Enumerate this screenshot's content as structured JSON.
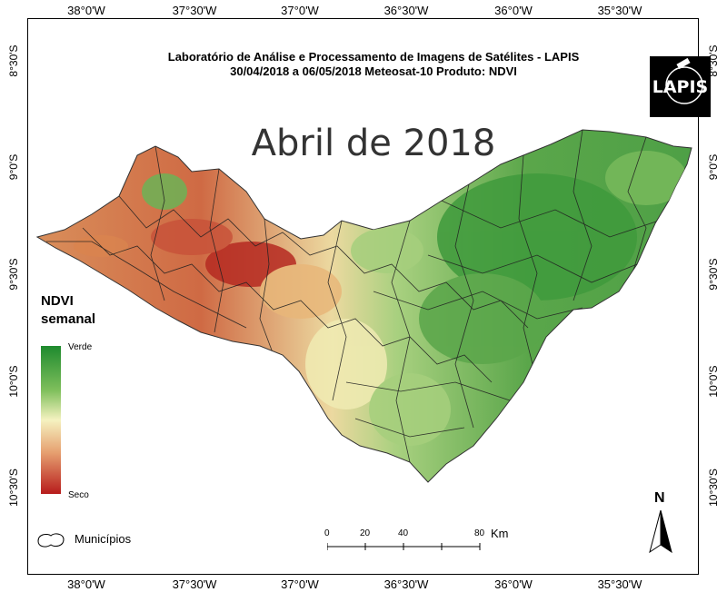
{
  "header": {
    "line1": "Laboratório de Análise e Processamento de Imagens de Satélites - LAPIS",
    "line2": "30/04/2018  a 06/05/2018          Meteosat-10        Produto: NDVI"
  },
  "map_title": "Abril de 2018",
  "logo_text": "LAPIS",
  "axes": {
    "lon_ticks": [
      "38°0'W",
      "37°30'W",
      "37°0'W",
      "36°30'W",
      "36°0'W",
      "35°30'W"
    ],
    "lat_ticks": [
      "8°30'S",
      "9°0'S",
      "9°30'S",
      "10°0'S",
      "10°30'S"
    ]
  },
  "legend": {
    "title_line1": "NDVI",
    "title_line2": "semanal",
    "top_label": "Verde",
    "bottom_label": "Seco",
    "colors": [
      "#1e8a2e",
      "#7fbf5c",
      "#f5f2c0",
      "#e6a070",
      "#b71c1c"
    ]
  },
  "municipios_label": "Municípios",
  "scale": {
    "ticks": [
      "0",
      "20",
      "40",
      "80"
    ],
    "unit": "Km"
  },
  "north_label": "N",
  "region_colors": {
    "dark_green": "#3f9a3c",
    "green": "#6db356",
    "light_green": "#a6cf7d",
    "cream": "#f0ebb3",
    "orange": "#e3a56b",
    "red": "#c0392b"
  }
}
